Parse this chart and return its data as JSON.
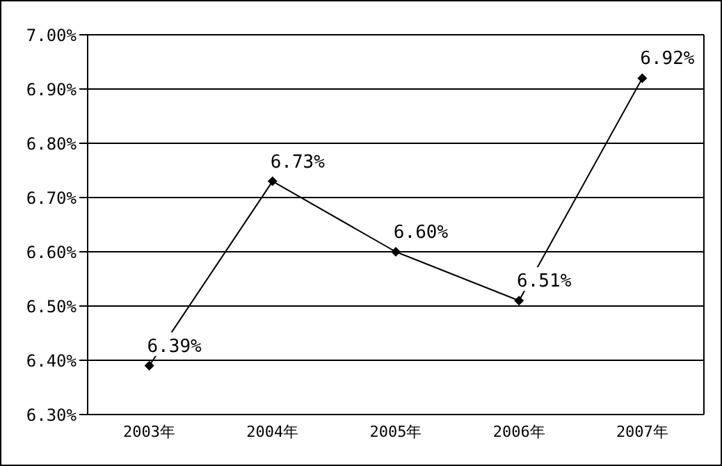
{
  "chart_data": {
    "type": "line",
    "categories": [
      "2003年",
      "2004年",
      "2005年",
      "2006年",
      "2007年"
    ],
    "series": [
      {
        "color": "#000000",
        "values": [
          6.39,
          6.73,
          6.6,
          6.51,
          6.92
        ],
        "value_labels": [
          "6.39%",
          "6.73%",
          "6.60%",
          "6.51%",
          "6.92%"
        ]
      }
    ],
    "ylim": [
      6.3,
      7.0
    ],
    "yticks": [
      {
        "value": 6.3,
        "label": "6.30%"
      },
      {
        "value": 6.4,
        "label": "6.40%"
      },
      {
        "value": 6.5,
        "label": "6.50%"
      },
      {
        "value": 6.6,
        "label": "6.60%"
      },
      {
        "value": 6.7,
        "label": "6.70%"
      },
      {
        "value": 6.8,
        "label": "6.80%"
      },
      {
        "value": 6.9,
        "label": "6.90%"
      },
      {
        "value": 7.0,
        "label": "7.00%"
      }
    ],
    "grid": "y",
    "marker": "diamond",
    "line_style": "solid",
    "legend": false
  }
}
